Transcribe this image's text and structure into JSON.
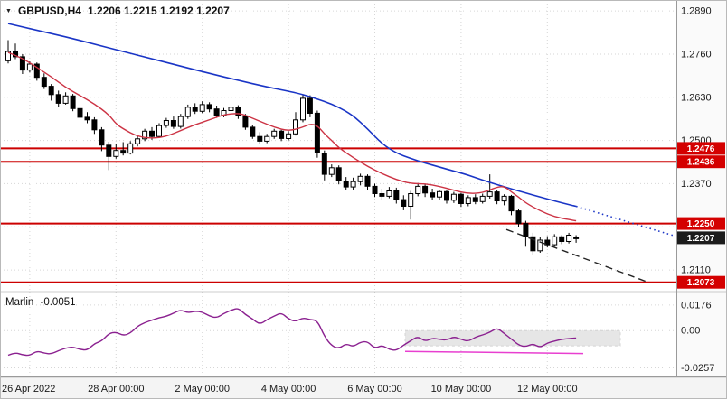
{
  "header": {
    "symbol_period": "GBPUSD,H4",
    "ohlc": "1.2206 1.2215 1.2192 1.2207"
  },
  "indicator": {
    "name": "Marlin",
    "value": "-0.0051"
  },
  "colors": {
    "grid": "#d6d6d6",
    "candle": "#000000",
    "candle_up": "#ffffff",
    "candle_down": "#000000",
    "ma_blue": "#1a35c6",
    "ma_red": "#cc3344",
    "level": "#cc0000",
    "level_badge": "#d40000",
    "current_badge": "#1c1c1c",
    "trendline": "#222222",
    "marlin": "#8b2190",
    "marlin_signal": "#e83fd0",
    "band": "#e6e6e6",
    "separator": "#9a9a9a",
    "frame": "#b9b9b9"
  },
  "chart_data": {
    "type": "candlestick",
    "symbol": "GBPUSD",
    "timeframe": "H4",
    "current_quote": {
      "open": 1.2206,
      "high": 1.2215,
      "low": 1.2192,
      "close": 1.2207
    },
    "ylim_main": [
      1.2045,
      1.2923
    ],
    "ylim_indicator": [
      -0.031,
      0.025
    ],
    "y_axis_ticks": [
      {
        "value": 1.289,
        "label": "1.2890"
      },
      {
        "value": 1.276,
        "label": "1.2760"
      },
      {
        "value": 1.263,
        "label": "1.2630"
      },
      {
        "value": 1.25,
        "label": "1.2500"
      },
      {
        "value": 1.237,
        "label": "1.2370"
      },
      {
        "value": 1.224,
        "label": ""
      },
      {
        "value": 1.211,
        "label": "1.2110"
      }
    ],
    "x_axis_ticks": [
      {
        "index": 3,
        "label": "26 Apr 2022"
      },
      {
        "index": 15,
        "label": "28 Apr 00:00"
      },
      {
        "index": 27,
        "label": "2 May 00:00"
      },
      {
        "index": 39,
        "label": "4 May 00:00"
      },
      {
        "index": 51,
        "label": "6 May 00:00"
      },
      {
        "index": 63,
        "label": "10 May 00:00"
      },
      {
        "index": 75,
        "label": "12 May 00:00"
      }
    ],
    "candles": [
      [
        1.274,
        1.2802,
        1.2732,
        1.2768
      ],
      [
        1.2768,
        1.2792,
        1.2745,
        1.2752
      ],
      [
        1.2752,
        1.276,
        1.27,
        1.2712
      ],
      [
        1.2712,
        1.2738,
        1.2705,
        1.273
      ],
      [
        1.273,
        1.2735,
        1.268,
        1.269
      ],
      [
        1.269,
        1.2702,
        1.2655,
        1.2663
      ],
      [
        1.2663,
        1.267,
        1.262,
        1.2638
      ],
      [
        1.2638,
        1.265,
        1.26,
        1.2612
      ],
      [
        1.2612,
        1.2645,
        1.2608,
        1.2634
      ],
      [
        1.2634,
        1.264,
        1.2588,
        1.2596
      ],
      [
        1.2596,
        1.261,
        1.256,
        1.257
      ],
      [
        1.257,
        1.2585,
        1.2552,
        1.2562
      ],
      [
        1.2562,
        1.257,
        1.252,
        1.2532
      ],
      [
        1.2532,
        1.254,
        1.2468,
        1.2486
      ],
      [
        1.2486,
        1.2496,
        1.2411,
        1.2452
      ],
      [
        1.2452,
        1.2488,
        1.2445,
        1.247
      ],
      [
        1.247,
        1.2495,
        1.2455,
        1.2462
      ],
      [
        1.2462,
        1.2498,
        1.2458,
        1.249
      ],
      [
        1.249,
        1.2515,
        1.2482,
        1.2505
      ],
      [
        1.2505,
        1.2535,
        1.2498,
        1.2528
      ],
      [
        1.2528,
        1.254,
        1.2502,
        1.2512
      ],
      [
        1.2512,
        1.2552,
        1.2508,
        1.2545
      ],
      [
        1.2545,
        1.2568,
        1.2538,
        1.256
      ],
      [
        1.256,
        1.2572,
        1.2535,
        1.2542
      ],
      [
        1.2542,
        1.258,
        1.2536,
        1.2572
      ],
      [
        1.2572,
        1.2608,
        1.2565,
        1.26
      ],
      [
        1.26,
        1.2612,
        1.258,
        1.2588
      ],
      [
        1.2588,
        1.2618,
        1.2582,
        1.2608
      ],
      [
        1.2608,
        1.2615,
        1.2585,
        1.2595
      ],
      [
        1.2595,
        1.2605,
        1.2568,
        1.2576
      ],
      [
        1.2576,
        1.2598,
        1.257,
        1.259
      ],
      [
        1.259,
        1.2605,
        1.2575,
        1.26
      ],
      [
        1.26,
        1.2606,
        1.2565,
        1.2574
      ],
      [
        1.2574,
        1.258,
        1.2532,
        1.254
      ],
      [
        1.254,
        1.2548,
        1.2505,
        1.2512
      ],
      [
        1.2512,
        1.2525,
        1.249,
        1.2498
      ],
      [
        1.2498,
        1.252,
        1.2492,
        1.2512
      ],
      [
        1.2512,
        1.2535,
        1.2505,
        1.2528
      ],
      [
        1.2528,
        1.2532,
        1.2498,
        1.2506
      ],
      [
        1.2506,
        1.2528,
        1.25,
        1.252
      ],
      [
        1.252,
        1.2585,
        1.2515,
        1.2562
      ],
      [
        1.2562,
        1.2638,
        1.2555,
        1.2627
      ],
      [
        1.2627,
        1.2636,
        1.257,
        1.2582
      ],
      [
        1.2582,
        1.259,
        1.2448,
        1.2462
      ],
      [
        1.2462,
        1.247,
        1.238,
        1.2398
      ],
      [
        1.2398,
        1.2428,
        1.239,
        1.2418
      ],
      [
        1.2418,
        1.2425,
        1.2368,
        1.2378
      ],
      [
        1.2378,
        1.239,
        1.235,
        1.236
      ],
      [
        1.236,
        1.2388,
        1.2352,
        1.2376
      ],
      [
        1.2376,
        1.24,
        1.2365,
        1.2392
      ],
      [
        1.2392,
        1.2398,
        1.2352,
        1.2362
      ],
      [
        1.2362,
        1.237,
        1.233,
        1.234
      ],
      [
        1.234,
        1.2355,
        1.2322,
        1.2332
      ],
      [
        1.2332,
        1.236,
        1.2326,
        1.2348
      ],
      [
        1.2348,
        1.2358,
        1.231,
        1.2322
      ],
      [
        1.2322,
        1.2335,
        1.229,
        1.2302
      ],
      [
        1.2302,
        1.2348,
        1.2262,
        1.234
      ],
      [
        1.234,
        1.2372,
        1.2332,
        1.2362
      ],
      [
        1.2362,
        1.237,
        1.233,
        1.2342
      ],
      [
        1.2342,
        1.2355,
        1.2322,
        1.233
      ],
      [
        1.233,
        1.2352,
        1.2322,
        1.2346
      ],
      [
        1.2346,
        1.2352,
        1.231,
        1.232
      ],
      [
        1.232,
        1.2345,
        1.2312,
        1.2338
      ],
      [
        1.2338,
        1.2342,
        1.23,
        1.231
      ],
      [
        1.231,
        1.2335,
        1.2302,
        1.2328
      ],
      [
        1.2328,
        1.2338,
        1.2308,
        1.2316
      ],
      [
        1.2316,
        1.234,
        1.231,
        1.2332
      ],
      [
        1.2332,
        1.2398,
        1.2325,
        1.2345
      ],
      [
        1.2345,
        1.2352,
        1.2308,
        1.2318
      ],
      [
        1.2318,
        1.2338,
        1.2305,
        1.2332
      ],
      [
        1.2332,
        1.2336,
        1.2275,
        1.2288
      ],
      [
        1.2288,
        1.2295,
        1.224,
        1.225
      ],
      [
        1.225,
        1.2258,
        1.218,
        1.221
      ],
      [
        1.221,
        1.2222,
        1.2156,
        1.2168
      ],
      [
        1.2168,
        1.221,
        1.2162,
        1.22
      ],
      [
        1.22,
        1.2212,
        1.2178,
        1.2186
      ],
      [
        1.2186,
        1.2218,
        1.218,
        1.221
      ],
      [
        1.221,
        1.2215,
        1.2188,
        1.2196
      ],
      [
        1.2196,
        1.2222,
        1.219,
        1.2215
      ],
      [
        1.2206,
        1.2215,
        1.2192,
        1.2207
      ]
    ],
    "ma_blue": {
      "anchors": [
        [
          0,
          1.2852
        ],
        [
          4,
          1.2832
        ],
        [
          8,
          1.2812
        ],
        [
          12,
          1.279
        ],
        [
          16,
          1.2768
        ],
        [
          20,
          1.2746
        ],
        [
          24,
          1.2724
        ],
        [
          28,
          1.2702
        ],
        [
          32,
          1.2681
        ],
        [
          36,
          1.2661
        ],
        [
          40,
          1.2644
        ],
        [
          42,
          1.2632
        ],
        [
          44,
          1.2618
        ],
        [
          46,
          1.26
        ],
        [
          48,
          1.2575
        ],
        [
          50,
          1.2535
        ],
        [
          52,
          1.249
        ],
        [
          54,
          1.2462
        ],
        [
          56,
          1.2446
        ],
        [
          58,
          1.2432
        ],
        [
          60,
          1.242
        ],
        [
          62,
          1.2408
        ],
        [
          64,
          1.2396
        ],
        [
          66,
          1.2381
        ],
        [
          68,
          1.2367
        ],
        [
          70,
          1.2354
        ],
        [
          72,
          1.2342
        ],
        [
          74,
          1.233
        ],
        [
          76,
          1.2318
        ],
        [
          78,
          1.2307
        ],
        [
          79,
          1.2302
        ]
      ],
      "forecast": {
        "x": 747,
        "price": 1.2212
      }
    },
    "ma_red": {
      "anchors": [
        [
          0,
          1.2765
        ],
        [
          2,
          1.2748
        ],
        [
          4,
          1.272
        ],
        [
          6,
          1.2692
        ],
        [
          8,
          1.266
        ],
        [
          10,
          1.2635
        ],
        [
          12,
          1.261
        ],
        [
          14,
          1.2578
        ],
        [
          15,
          1.255
        ],
        [
          16,
          1.2535
        ],
        [
          18,
          1.2512
        ],
        [
          20,
          1.2506
        ],
        [
          22,
          1.2512
        ],
        [
          24,
          1.253
        ],
        [
          26,
          1.2548
        ],
        [
          28,
          1.2562
        ],
        [
          30,
          1.2578
        ],
        [
          32,
          1.2582
        ],
        [
          33,
          1.2576
        ],
        [
          35,
          1.2558
        ],
        [
          37,
          1.254
        ],
        [
          39,
          1.2528
        ],
        [
          41,
          1.254
        ],
        [
          42,
          1.255
        ],
        [
          43,
          1.2545
        ],
        [
          44,
          1.252
        ],
        [
          45,
          1.25
        ],
        [
          46,
          1.2478
        ],
        [
          48,
          1.2448
        ],
        [
          50,
          1.2422
        ],
        [
          52,
          1.24
        ],
        [
          54,
          1.2382
        ],
        [
          56,
          1.237
        ],
        [
          58,
          1.237
        ],
        [
          60,
          1.2362
        ],
        [
          62,
          1.235
        ],
        [
          64,
          1.234
        ],
        [
          66,
          1.2342
        ],
        [
          68,
          1.236
        ],
        [
          69,
          1.2362
        ],
        [
          70,
          1.2345
        ],
        [
          71,
          1.233
        ],
        [
          72,
          1.2312
        ],
        [
          74,
          1.2288
        ],
        [
          76,
          1.227
        ],
        [
          78,
          1.2262
        ],
        [
          79,
          1.2258
        ]
      ]
    },
    "levels": [
      {
        "price": 1.2476,
        "label": "1.2476"
      },
      {
        "price": 1.2436,
        "label": "1.2436"
      },
      {
        "price": 1.225,
        "label": "1.2250"
      },
      {
        "price": 1.2073,
        "label": "1.2073"
      }
    ],
    "current_price": {
      "price": 1.2207,
      "label": "1.2207"
    },
    "trendline": {
      "x1": 560,
      "price1": 1.2232,
      "x2": 718,
      "price2": 1.2072
    },
    "indicator_panel": {
      "name": "Marlin",
      "value": -0.0051,
      "y_ticks": [
        {
          "value": 0.0176,
          "label": "0.0176"
        },
        {
          "value": 0.0,
          "label": "0.00"
        },
        {
          "value": -0.0257,
          "label": "-0.0257"
        }
      ],
      "values": [
        -0.017,
        -0.015,
        -0.0168,
        -0.0172,
        -0.014,
        -0.0155,
        -0.0162,
        -0.0138,
        -0.012,
        -0.0112,
        -0.013,
        -0.0135,
        -0.009,
        -0.0072,
        -0.002,
        -0.001,
        -0.0035,
        -0.0018,
        0.003,
        0.0055,
        0.0072,
        0.0088,
        0.0098,
        0.012,
        0.0143,
        0.0122,
        0.0135,
        0.0128,
        0.01,
        0.0087,
        0.0118,
        0.014,
        0.0156,
        0.011,
        0.008,
        0.0042,
        0.0075,
        0.01,
        0.0124,
        0.008,
        0.0062,
        0.0088,
        0.0075,
        0.007,
        -0.004,
        -0.0105,
        -0.0124,
        -0.009,
        -0.0112,
        -0.008,
        -0.0075,
        -0.0124,
        -0.01,
        -0.013,
        -0.0137,
        -0.01,
        -0.007,
        -0.004,
        -0.0075,
        -0.0052,
        -0.006,
        -0.0066,
        -0.0042,
        -0.006,
        -0.0075,
        -0.0045,
        -0.003,
        -0.0012,
        0.002,
        -0.002,
        -0.0058,
        -0.01,
        -0.0112,
        -0.009,
        -0.0118,
        -0.0085,
        -0.0072,
        -0.006,
        -0.0055,
        -0.0051
      ],
      "band": {
        "x1": 448,
        "x2": 686,
        "top": 0.0,
        "bottom": -0.0105
      },
      "signal_line": {
        "x1": 448,
        "v1": -0.0143,
        "x2": 645,
        "v2": -0.0158
      }
    }
  }
}
